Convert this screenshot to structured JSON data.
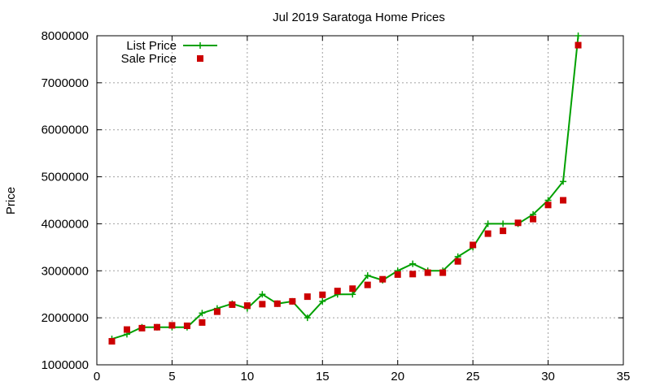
{
  "chart_data": {
    "type": "line",
    "title": "Jul 2019 Saratoga Home Prices",
    "xlabel": "",
    "ylabel": "Price",
    "xlim": [
      0,
      35
    ],
    "ylim": [
      1000000,
      8000000
    ],
    "xticks": [
      0,
      5,
      10,
      15,
      20,
      25,
      30,
      35
    ],
    "yticks": [
      1000000,
      2000000,
      3000000,
      4000000,
      5000000,
      6000000,
      7000000,
      8000000
    ],
    "grid": true,
    "legend_position": "top-left",
    "colors": {
      "list": "#00a000",
      "sale": "#cc0000"
    },
    "series": [
      {
        "name": "List Price",
        "style": "line-plus",
        "x": [
          1,
          2,
          3,
          4,
          5,
          6,
          7,
          8,
          9,
          10,
          11,
          12,
          13,
          14,
          15,
          16,
          17,
          18,
          19,
          20,
          21,
          22,
          23,
          24,
          25,
          26,
          27,
          28,
          29,
          30,
          31,
          32
        ],
        "values": [
          1550000,
          1650000,
          1800000,
          1800000,
          1800000,
          1800000,
          2100000,
          2200000,
          2300000,
          2200000,
          2500000,
          2300000,
          2350000,
          2000000,
          2350000,
          2500000,
          2500000,
          2900000,
          2800000,
          3000000,
          3150000,
          3000000,
          3000000,
          3300000,
          3500000,
          4000000,
          4000000,
          4000000,
          4200000,
          4500000,
          4900000,
          8000000
        ]
      },
      {
        "name": "Sale Price",
        "style": "square-marker",
        "x": [
          1,
          2,
          3,
          4,
          5,
          6,
          7,
          8,
          9,
          10,
          11,
          12,
          13,
          14,
          15,
          16,
          17,
          18,
          19,
          20,
          21,
          22,
          23,
          24,
          25,
          26,
          27,
          28,
          29,
          30,
          31,
          32
        ],
        "values": [
          1500000,
          1750000,
          1780000,
          1800000,
          1840000,
          1830000,
          1900000,
          2130000,
          2280000,
          2260000,
          2290000,
          2300000,
          2350000,
          2450000,
          2490000,
          2570000,
          2620000,
          2700000,
          2820000,
          2920000,
          2930000,
          2960000,
          2960000,
          3200000,
          3550000,
          3790000,
          3850000,
          4020000,
          4100000,
          4400000,
          4500000,
          7800000
        ]
      }
    ]
  }
}
